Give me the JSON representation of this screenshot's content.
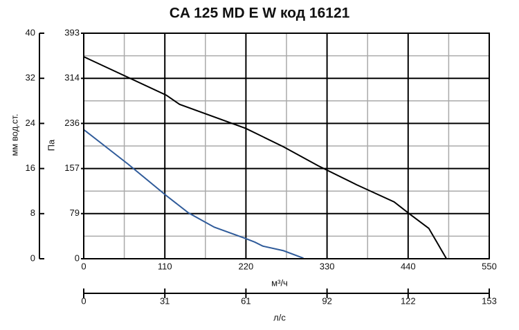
{
  "chart_data": {
    "type": "line",
    "title": "CA 125 MD E W код 16121",
    "xlabel": "м³/ч",
    "ylabel": "Па",
    "y2label": "мм вод.ст.",
    "x2label": "л/с",
    "xlim": [
      0,
      550
    ],
    "xticks": [
      0,
      110,
      220,
      330,
      440,
      550
    ],
    "ylim": [
      0,
      393
    ],
    "yticks": [
      0,
      {
        "value": 78.6,
        "label": "79"
      },
      {
        "value": 157.2,
        "label": "157"
      },
      {
        "value": 235.8,
        "label": "236"
      },
      {
        "value": 314.4,
        "label": "314"
      },
      393
    ],
    "y2lim": [
      0,
      40
    ],
    "y2ticks": [
      0,
      8,
      16,
      24,
      32,
      40
    ],
    "x2lim": [
      0,
      153
    ],
    "x2ticks": [
      0,
      {
        "value": 30.6,
        "label": "31"
      },
      {
        "value": 61.2,
        "label": "61"
      },
      {
        "value": 91.8,
        "label": "92"
      },
      {
        "value": 122.4,
        "label": "122"
      },
      153
    ],
    "grid": true,
    "series": [
      {
        "color": "#000000",
        "x": [
          0,
          112,
          130,
          220,
          271,
          318,
          370,
          421,
          442,
          468,
          492
        ],
        "values": [
          352,
          285,
          269,
          227,
          195,
          162,
          129,
          99,
          78,
          53,
          0
        ]
      },
      {
        "color": "#2f5b9a",
        "x": [
          0,
          60,
          112,
          142,
          177,
          220,
          232,
          243,
          271,
          298
        ],
        "values": [
          225,
          165,
          110,
          80,
          55,
          35,
          29,
          22,
          14,
          1
        ]
      }
    ]
  }
}
